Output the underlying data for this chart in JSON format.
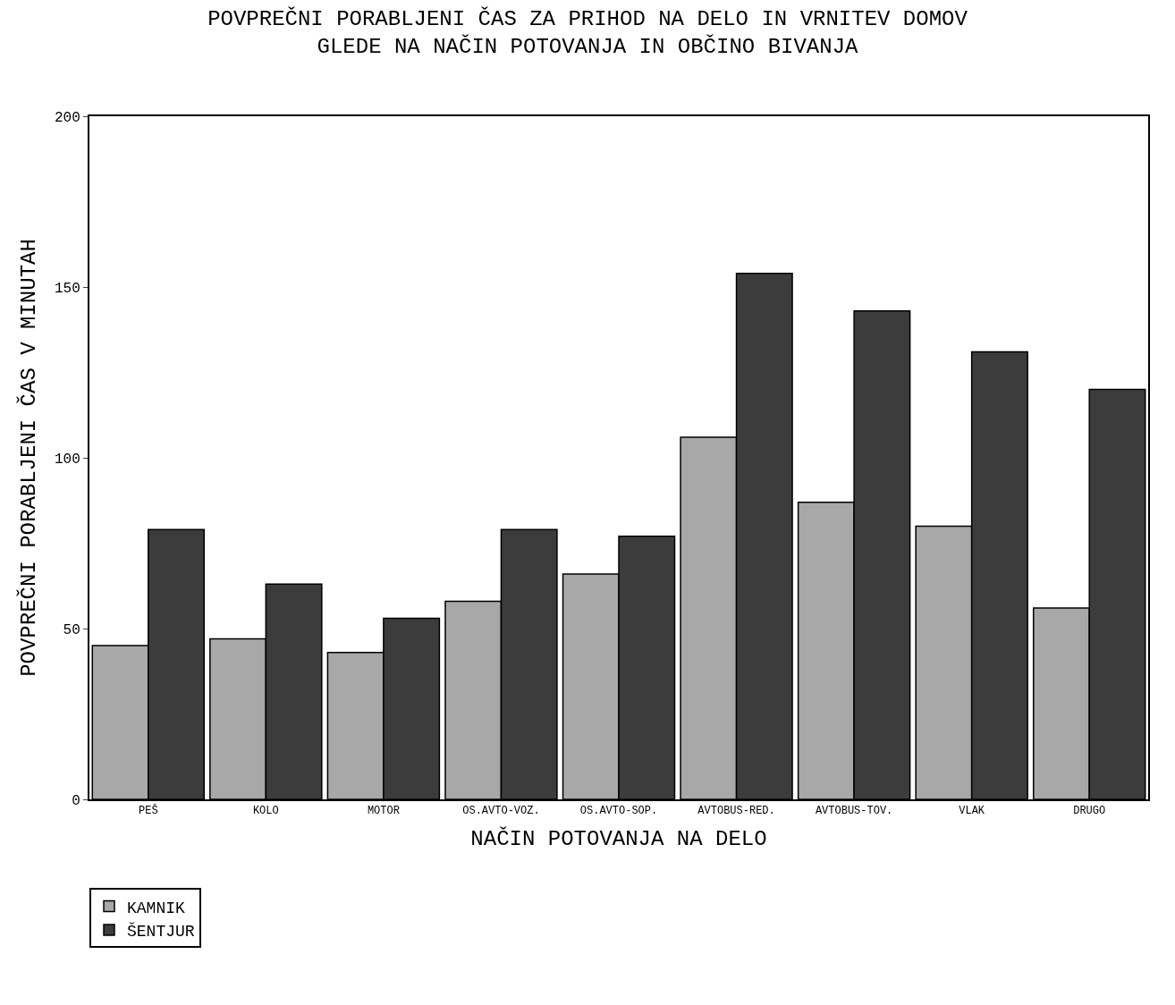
{
  "chart_data": {
    "type": "bar",
    "title": "POVPREČNI PORABLJENI ČAS ZA PRIHOD NA DELO IN VRNITEV DOMOV\nGLEDE NA NAČIN POTOVANJA IN OBČINO BIVANJA",
    "xlabel": "NAČIN POTOVANJA NA DELO",
    "ylabel": "POVPREČNI PORABLJENI ČAS V MINUTAH",
    "categories": [
      "PEŠ",
      "KOLO",
      "MOTOR",
      "OS.AVTO-VOZ.",
      "OS.AVTO-SOP.",
      "AVTOBUS-RED.",
      "AVTOBUS-TOV.",
      "VLAK",
      "DRUGO"
    ],
    "series": [
      {
        "name": "KAMNIK",
        "color": "#a8a8a8",
        "values": [
          45,
          47,
          43,
          58,
          66,
          106,
          87,
          80,
          56
        ]
      },
      {
        "name": "ŠENTJUR",
        "color": "#3c3c3c",
        "values": [
          79,
          63,
          53,
          79,
          77,
          154,
          143,
          131,
          120
        ]
      }
    ],
    "ylim": [
      0,
      200
    ],
    "yticks": [
      0,
      50,
      100,
      150,
      200
    ],
    "grid": false,
    "legend": "bottom left"
  }
}
